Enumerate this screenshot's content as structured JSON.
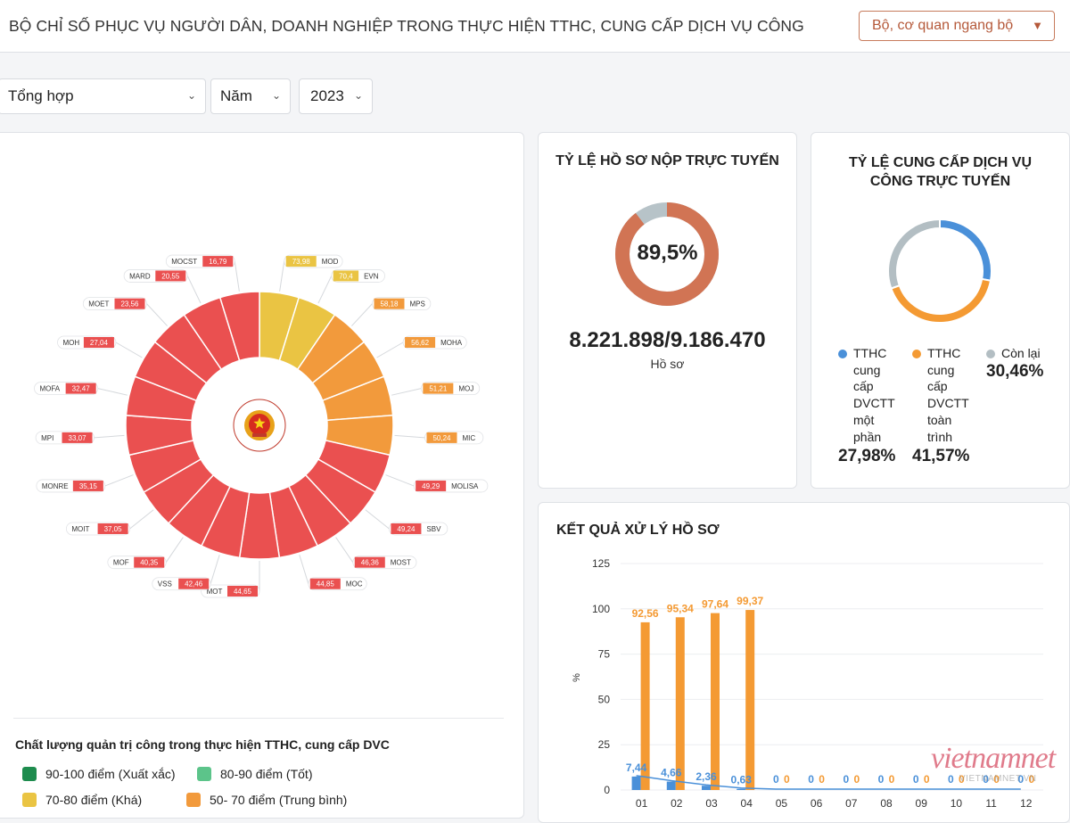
{
  "header": {
    "title": "BỘ CHỈ SỐ PHỤC VỤ NGƯỜI DÂN, DOANH NGHIỆP TRONG THỰC HIỆN TTHC, CUNG CẤP DỊCH VỤ CÔNG",
    "org_select": "Bộ, cơ quan ngang bộ",
    "caret_icon": "caret-down-icon"
  },
  "filters": {
    "type": "Tổng hợp",
    "period": "Năm",
    "year": "2023"
  },
  "ring": {
    "entries": [
      {
        "code": "MOD",
        "value": "73,98",
        "color": "#eac443"
      },
      {
        "code": "EVN",
        "value": "70,4",
        "color": "#eac443"
      },
      {
        "code": "MPS",
        "value": "58,18",
        "color": "#f29a3c"
      },
      {
        "code": "MOHA",
        "value": "56,62",
        "color": "#f29a3c"
      },
      {
        "code": "MOJ",
        "value": "51,21",
        "color": "#f29a3c"
      },
      {
        "code": "MIC",
        "value": "50,24",
        "color": "#f29a3c"
      },
      {
        "code": "MOLISA",
        "value": "49,29",
        "color": "#ea5050"
      },
      {
        "code": "SBV",
        "value": "49,24",
        "color": "#ea5050"
      },
      {
        "code": "MOST",
        "value": "46,36",
        "color": "#ea5050"
      },
      {
        "code": "MOC",
        "value": "44,85",
        "color": "#ea5050"
      },
      {
        "code": "MOT",
        "value": "44,65",
        "color": "#ea5050"
      },
      {
        "code": "VSS",
        "value": "42,46",
        "color": "#ea5050"
      },
      {
        "code": "MOF",
        "value": "40,35",
        "color": "#ea5050"
      },
      {
        "code": "MOIT",
        "value": "37,05",
        "color": "#ea5050"
      },
      {
        "code": "MONRE",
        "value": "35,15",
        "color": "#ea5050"
      },
      {
        "code": "MPI",
        "value": "33,07",
        "color": "#ea5050"
      },
      {
        "code": "MOFA",
        "value": "32,47",
        "color": "#ea5050"
      },
      {
        "code": "MOH",
        "value": "27,04",
        "color": "#ea5050"
      },
      {
        "code": "MOET",
        "value": "23,56",
        "color": "#ea5050"
      },
      {
        "code": "MARD",
        "value": "20,55",
        "color": "#ea5050"
      },
      {
        "code": "MOCST",
        "value": "16,79",
        "color": "#ea5050"
      }
    ],
    "center_icon": "national-emblem-icon"
  },
  "legend": {
    "title": "Chất lượng quản trị công trong thực hiện TTHC, cung cấp DVC",
    "items": [
      {
        "label": "90-100 điểm (Xuất xắc)",
        "color": "#1e8c4e"
      },
      {
        "label": "80-90 điểm (Tốt)",
        "color": "#5cc48a"
      },
      {
        "label": "70-80 điểm (Khá)",
        "color": "#eac443"
      },
      {
        "label": "50- 70 điểm (Trung bình)",
        "color": "#f29a3c"
      }
    ]
  },
  "online_filing": {
    "title": "TỶ LỆ HỒ SƠ NỘP TRỰC TUYẾN",
    "percent": "89,5%",
    "percent_value": 89.5,
    "count": "8.221.898/9.186.470",
    "unit": "Hồ sơ",
    "colors": {
      "main": "#d17454",
      "rest": "#b7c3c8"
    }
  },
  "online_service": {
    "title_line1": "TỶ LỆ CUNG CẤP DỊCH VỤ",
    "title_line2": "CÔNG TRỰC TUYẾN",
    "segments": [
      {
        "name_lines": [
          "TTHC",
          "cung",
          "cấp",
          "DVCTT",
          "một",
          "phần"
        ],
        "value": "27,98%",
        "share": 27.98,
        "color": "#4a90d9"
      },
      {
        "name_lines": [
          "TTHC",
          "cung",
          "cấp",
          "DVCTT",
          "toàn",
          "trình"
        ],
        "value": "41,57%",
        "share": 41.57,
        "color": "#f49a33"
      },
      {
        "name_lines": [
          "Còn lại"
        ],
        "value": "30,46%",
        "share": 30.46,
        "color": "#b3bec3"
      }
    ]
  },
  "chart_data": {
    "type": "bar",
    "title": "KẾT QUẢ XỬ LÝ HỒ SƠ",
    "ylabel": "%",
    "ylim": [
      0,
      125
    ],
    "yticks": [
      "0",
      "25",
      "50",
      "75",
      "100",
      "125"
    ],
    "categories": [
      "01",
      "02",
      "03",
      "04",
      "05",
      "06",
      "07",
      "08",
      "09",
      "10",
      "11",
      "12"
    ],
    "series": [
      {
        "name": "blue",
        "color": "#4a90d9",
        "values": [
          7.44,
          4.66,
          2.36,
          0.63,
          0,
          0,
          0,
          0,
          0,
          0,
          0,
          0
        ],
        "labels": [
          "7,44",
          "4,66",
          "2,36",
          "0,63",
          "0",
          "0",
          "0",
          "0",
          "0",
          "0",
          "0",
          "0"
        ]
      },
      {
        "name": "orange",
        "color": "#f49a33",
        "values": [
          92.56,
          95.34,
          97.64,
          99.37,
          0,
          0,
          0,
          0,
          0,
          0,
          0,
          0
        ],
        "labels": [
          "92,56",
          "95,34",
          "97,64",
          "99,37",
          "0",
          "0",
          "0",
          "0",
          "0",
          "0",
          "0",
          "0"
        ]
      }
    ]
  },
  "watermark": {
    "brand": "vietnamnet",
    "domain": "VIETNAMNET.VN"
  }
}
